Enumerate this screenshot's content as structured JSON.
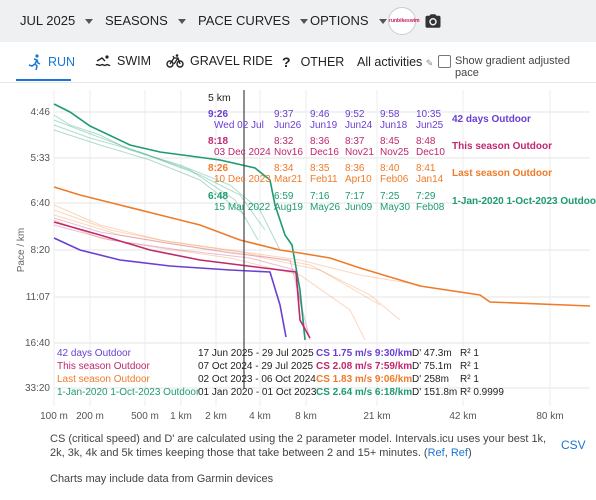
{
  "toolbar": {
    "month": "JUL 2025",
    "seasons": "SEASONS",
    "pace_curves": "PACE CURVES",
    "options": "OPTIONS",
    "logo_text": "runbikeswim"
  },
  "tabs": {
    "run": "RUN",
    "swim": "SWIM",
    "gravel": "GRAVEL RIDE",
    "other": "OTHER",
    "activity_filter": "All activities",
    "gradient_label": "Show gradient adjusted pace"
  },
  "colors": {
    "purple": "#6a3fd4",
    "pink": "#c0276e",
    "orange": "#ef7b2a",
    "green": "#1e9a73",
    "accent": "#1976d2"
  },
  "chart_data": {
    "type": "line",
    "ylabel": "Pace / km",
    "y_ticks": [
      "4:46",
      "5:33",
      "6:40",
      "8:20",
      "11:07",
      "16:40",
      "33:20"
    ],
    "x_ticks": [
      "100 m",
      "200 m",
      "500 m",
      "1 km",
      "2 km",
      "4 km",
      "8 km",
      "21 km",
      "42 km",
      "80 km"
    ],
    "marker_label": "5 km",
    "series": [
      {
        "name": "42 days Outdoor",
        "color": "#6a3fd4",
        "best_pace": "9:26",
        "best_date": "Wed 02 Jul",
        "top": [
          [
            "9:37",
            "Jun26"
          ],
          [
            "9:46",
            "Jun19"
          ],
          [
            "9:52",
            "Jun24"
          ],
          [
            "9:58",
            "Jun18"
          ],
          [
            "10:35",
            "Jun25"
          ]
        ],
        "range": "17 Jun 2025 - 29 Jul 2025",
        "cs": "CS 1.75 m/s 9:30/km",
        "dprime": "D' 47.3m",
        "r2": "R² 1"
      },
      {
        "name": "This season Outdoor",
        "color": "#c0276e",
        "best_pace": "8:18",
        "best_date": "03 Dec 2024",
        "top": [
          [
            "8:32",
            "Nov16"
          ],
          [
            "8:36",
            "Dec16"
          ],
          [
            "8:37",
            "Nov21"
          ],
          [
            "8:45",
            "Nov25"
          ],
          [
            "8:48",
            "Dec10"
          ]
        ],
        "range": "07 Oct 2024 - 29 Jul 2025",
        "cs": "CS 2.08 m/s 7:59/km",
        "dprime": "D' 75.1m",
        "r2": "R² 1"
      },
      {
        "name": "Last season Outdoor",
        "color": "#ef7b2a",
        "best_pace": "8:26",
        "best_date": "10 Dec 2023",
        "top": [
          [
            "8:34",
            "Mar21"
          ],
          [
            "8:35",
            "Feb11"
          ],
          [
            "8:36",
            "Apr10"
          ],
          [
            "8:40",
            "Feb06"
          ],
          [
            "8:41",
            "Jan14"
          ]
        ],
        "range": "02 Oct 2023 - 06 Oct 2024",
        "cs": "CS 1.83 m/s 9:06/km",
        "dprime": "D' 258m",
        "r2": "R² 1"
      },
      {
        "name": "1-Jan-2020 1-Oct-2023 Outdoor",
        "color": "#1e9a73",
        "best_pace": "6:48",
        "best_date": "15 Mar 2022",
        "top": [
          [
            "6:59",
            "Aug19"
          ],
          [
            "7:16",
            "May26"
          ],
          [
            "7:17",
            "Jun09"
          ],
          [
            "7:25",
            "May30"
          ],
          [
            "7:29",
            "Feb08"
          ]
        ],
        "range": "01 Jan 2020 - 01 Oct 2023",
        "cs": "CS 2.64 m/s 6:18/km",
        "dprime": "D' 151.8m",
        "r2": "R² 0.9999"
      }
    ]
  },
  "footer": {
    "text": "CS (critical speed) and D' are calculated using the 2 parameter model. Intervals.icu uses your best 1k, 2k, 3k, 4k and 5k times keeping those that take between 2 and 15+ minutes. (",
    "ref1": "Ref",
    "sep": ", ",
    "ref2": "Ref",
    "close": ")",
    "csv": "CSV",
    "garmin": "Charts may include data from Garmin devices"
  }
}
